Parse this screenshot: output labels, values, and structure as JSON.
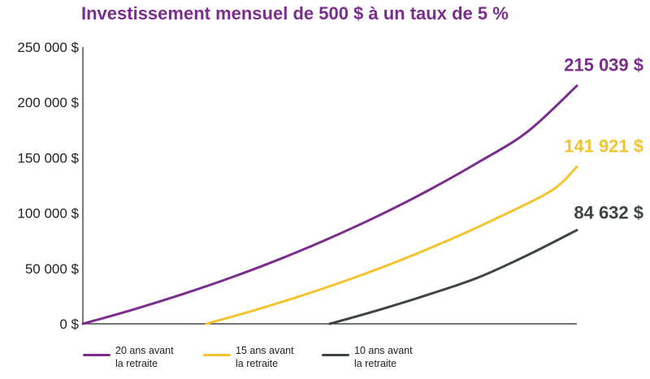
{
  "chart_data": {
    "type": "line",
    "title": "Investissement mensuel de 500 $ à un taux de 5 %",
    "xlabel": "",
    "ylabel": "",
    "ylim": [
      0,
      250000
    ],
    "yticks": [
      0,
      50000,
      100000,
      150000,
      200000,
      250000
    ],
    "ytick_labels": [
      "0 $",
      "50 000 $",
      "100 000 $",
      "150 000 $",
      "200 000 $",
      "250 000 $"
    ],
    "xlim": [
      0,
      20
    ],
    "grid": false,
    "legend_position": "bottom",
    "series": [
      {
        "name": "20 ans avant\nla retraite",
        "color": "#7b2d8e",
        "end_label": "215 039 $",
        "x": [
          0,
          2,
          4,
          6,
          8,
          10,
          12,
          14,
          16,
          18,
          20
        ],
        "y": [
          0,
          12600,
          26500,
          41800,
          58700,
          77400,
          98000,
          120700,
          145800,
          173500,
          215039
        ]
      },
      {
        "name": "15 ans avant\nla retraite",
        "color": "#f4c430",
        "end_label": "141 921 $",
        "x": [
          5,
          7,
          9,
          11,
          13,
          15,
          17,
          19,
          20
        ],
        "y": [
          0,
          12600,
          26500,
          41800,
          58700,
          77400,
          98000,
          120700,
          141921
        ]
      },
      {
        "name": "10 ans avant\nla retraite",
        "color": "#3d4443",
        "end_label": "84 632 $",
        "x": [
          10,
          12,
          14,
          16,
          18,
          20
        ],
        "y": [
          0,
          12600,
          26500,
          41800,
          62000,
          84632
        ]
      }
    ]
  }
}
